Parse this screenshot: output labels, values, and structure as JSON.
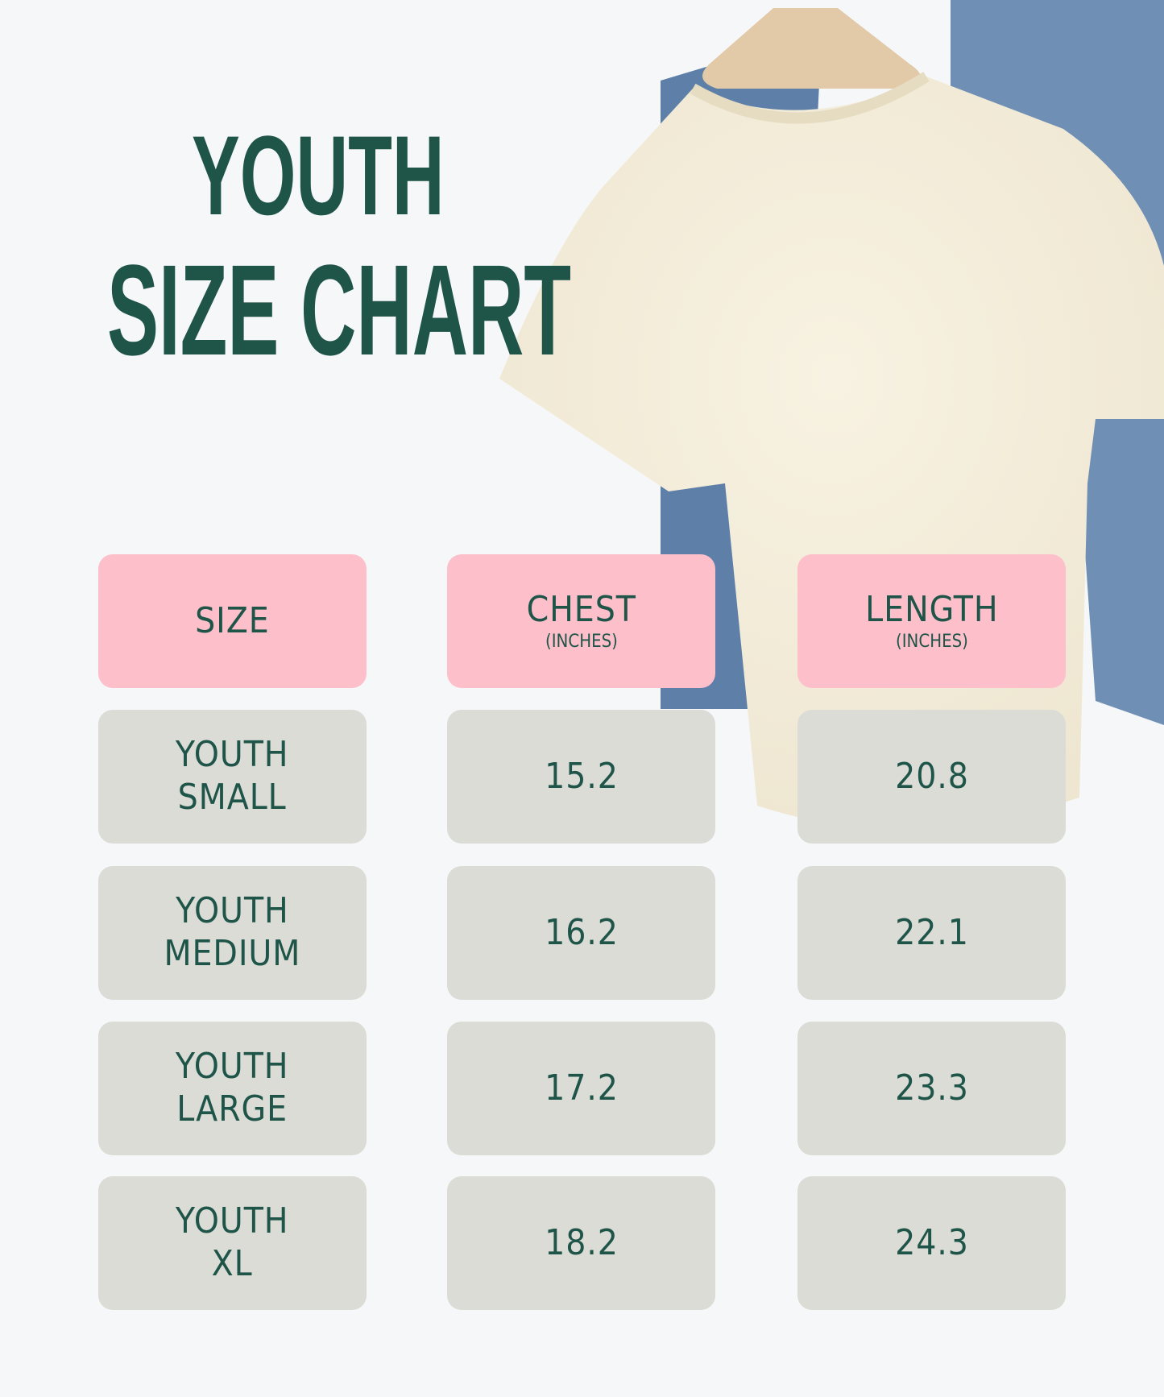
{
  "title": {
    "line1": "YOUTH",
    "line2": "SIZE CHART"
  },
  "colors": {
    "text": "#1f5449",
    "header_bg": "#fdbfca",
    "cell_bg": "#dbdcd6",
    "background": "#f6f7f9"
  },
  "table": {
    "headers": [
      {
        "label": "SIZE",
        "sub": ""
      },
      {
        "label": "CHEST",
        "sub": "(INCHES)"
      },
      {
        "label": "LENGTH",
        "sub": "(INCHES)"
      }
    ],
    "rows": [
      {
        "size": "YOUTH\nSMALL",
        "chest": "15.2",
        "length": "20.8"
      },
      {
        "size": "YOUTH\nMEDIUM",
        "chest": "16.2",
        "length": "22.1"
      },
      {
        "size": "YOUTH\nLARGE",
        "chest": "17.2",
        "length": "23.3"
      },
      {
        "size": "YOUTH\nXL",
        "chest": "18.2",
        "length": "24.3"
      }
    ]
  }
}
